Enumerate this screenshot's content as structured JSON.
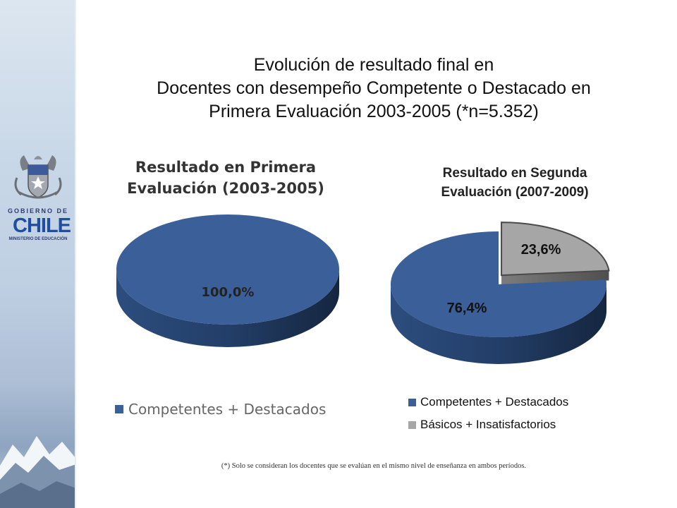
{
  "title": {
    "line1": "Evolución de resultado final en",
    "line2": "Docentes con desempeño Competente o Destacado en",
    "line3": "Primera Evaluación 2003-2005 (*n=5.352)"
  },
  "logo": {
    "line1": "GOBIERNO DE",
    "line2": "CHILE",
    "line3": "MINISTERIO DE EDUCACIÓN"
  },
  "colors": {
    "competentes": "#3a5f99",
    "basicos": "#a6a6a6"
  },
  "chart_data": [
    {
      "type": "pie",
      "title": [
        "Resultado en Primera",
        "Evaluación (2003-2005)"
      ],
      "slices": [
        {
          "label": "Competentes + Destacados",
          "value": 100.0,
          "data_label": "100,0%"
        }
      ],
      "legend": [
        "Competentes + Destacados"
      ],
      "legend_position": "bottom"
    },
    {
      "type": "pie",
      "title": [
        "Resultado en Segunda",
        "Evaluación (2007-2009)"
      ],
      "slices": [
        {
          "label": "Competentes + Destacados",
          "value": 76.4,
          "data_label": "76,4%"
        },
        {
          "label": "Básicos + Insatisfactorios",
          "value": 23.6,
          "data_label": "23,6%"
        }
      ],
      "legend": [
        "Competentes + Destacados",
        "Básicos + Insatisfactorios"
      ],
      "legend_position": "bottom"
    }
  ],
  "footnote": "(*) Solo se consideran los docentes que se evalúan en el mismo nivel de enseñanza en ambos períodos."
}
